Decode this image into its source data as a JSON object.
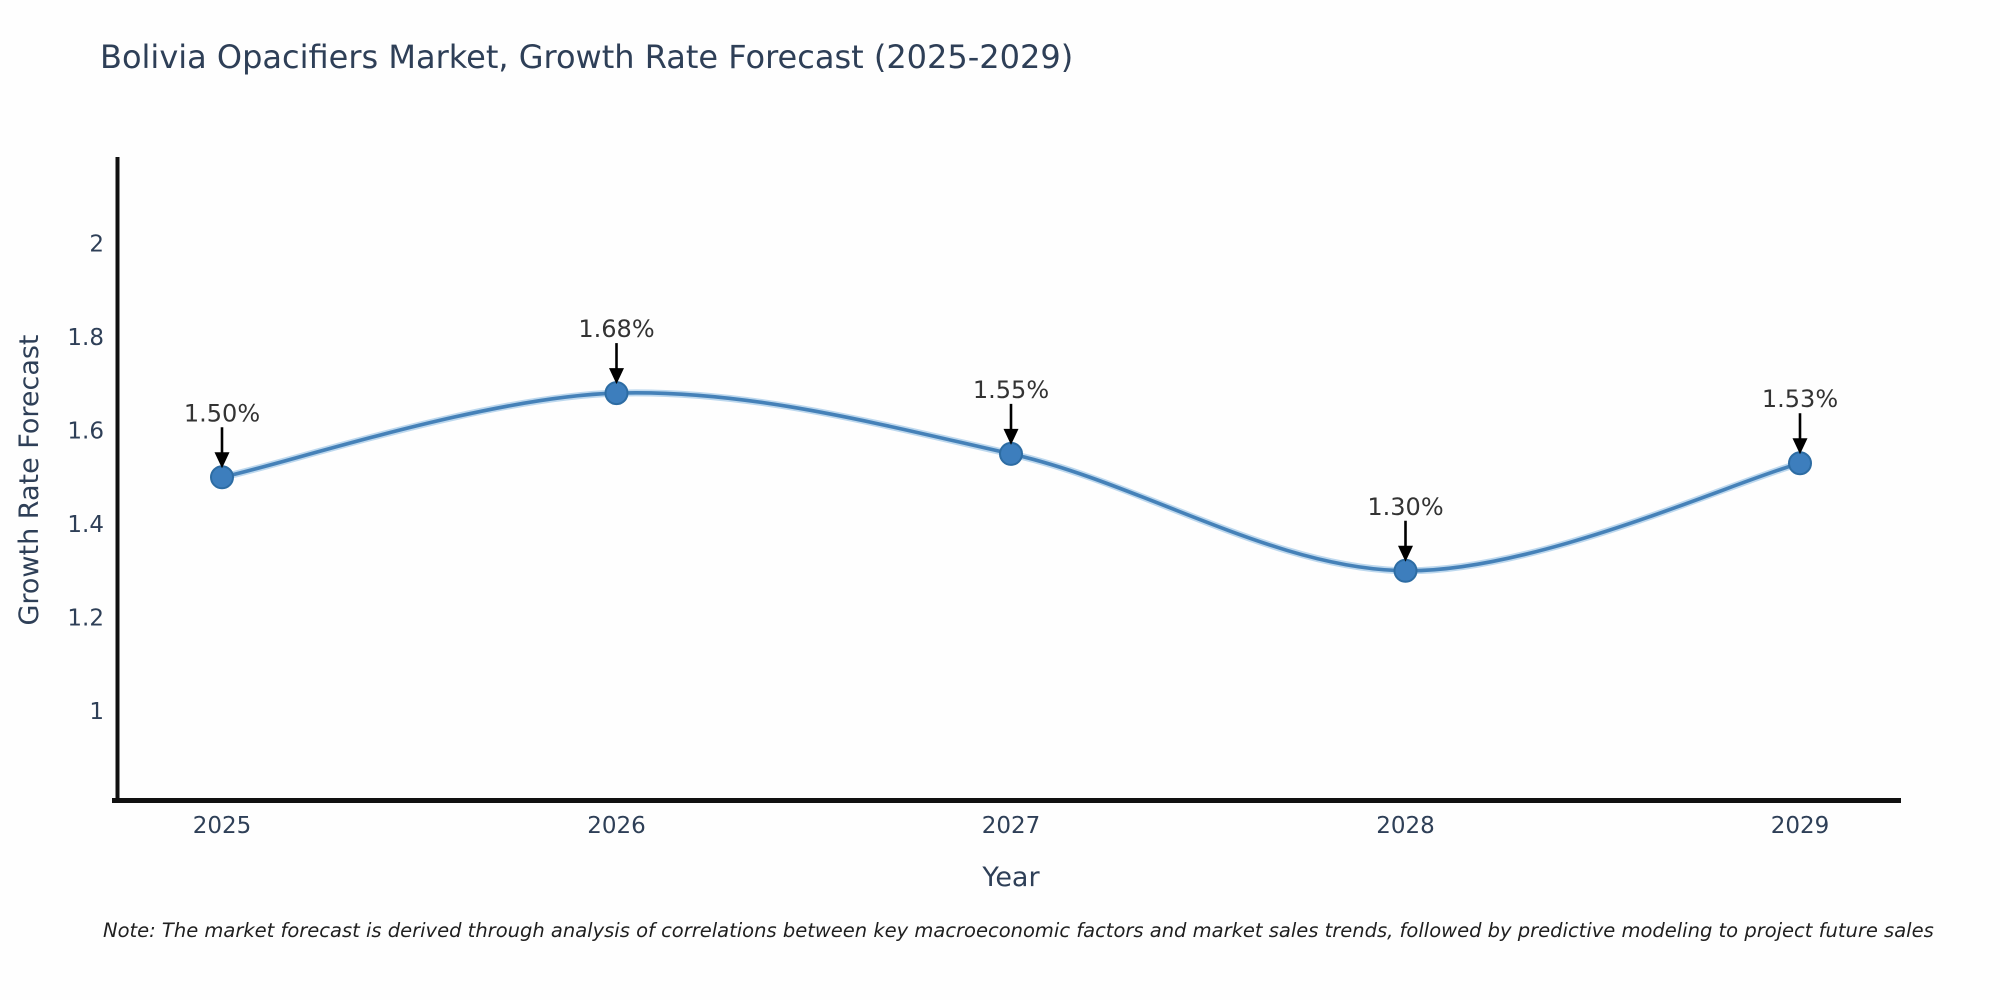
{
  "title": "Bolivia Opacifiers Market, Growth Rate Forecast (2025-2029)",
  "note": "Note: The market forecast is derived through analysis of correlations between key macroeconomic factors and market sales trends, followed by predictive modeling to project future sales",
  "chart_data": {
    "type": "line",
    "title": "Bolivia Opacifiers Market, Growth Rate Forecast (2025-2029)",
    "xlabel": "Year",
    "ylabel": "Growth Rate Forecast",
    "categories": [
      "2025",
      "2026",
      "2027",
      "2028",
      "2029"
    ],
    "values": [
      1.5,
      1.68,
      1.55,
      1.3,
      1.53
    ],
    "point_labels": [
      "1.50%",
      "1.68%",
      "1.55%",
      "1.30%",
      "1.53%"
    ],
    "yticks": [
      2,
      1.8,
      1.6,
      1.4,
      1.2,
      1
    ],
    "ylim": [
      0.81,
      2.18
    ],
    "grid": false,
    "legend": "none",
    "smooth": true,
    "annotations": "value labels with downward arrows above each point",
    "colors": {
      "line": "#4581b8",
      "line_halo": "#bdd8ee",
      "marker_fill": "#3d7ebd",
      "marker_edge": "#2d6ca3",
      "axis": "#111111",
      "axis_text": "#2e3f57",
      "point_label_text": "#333333",
      "arrow": "#000000"
    }
  }
}
